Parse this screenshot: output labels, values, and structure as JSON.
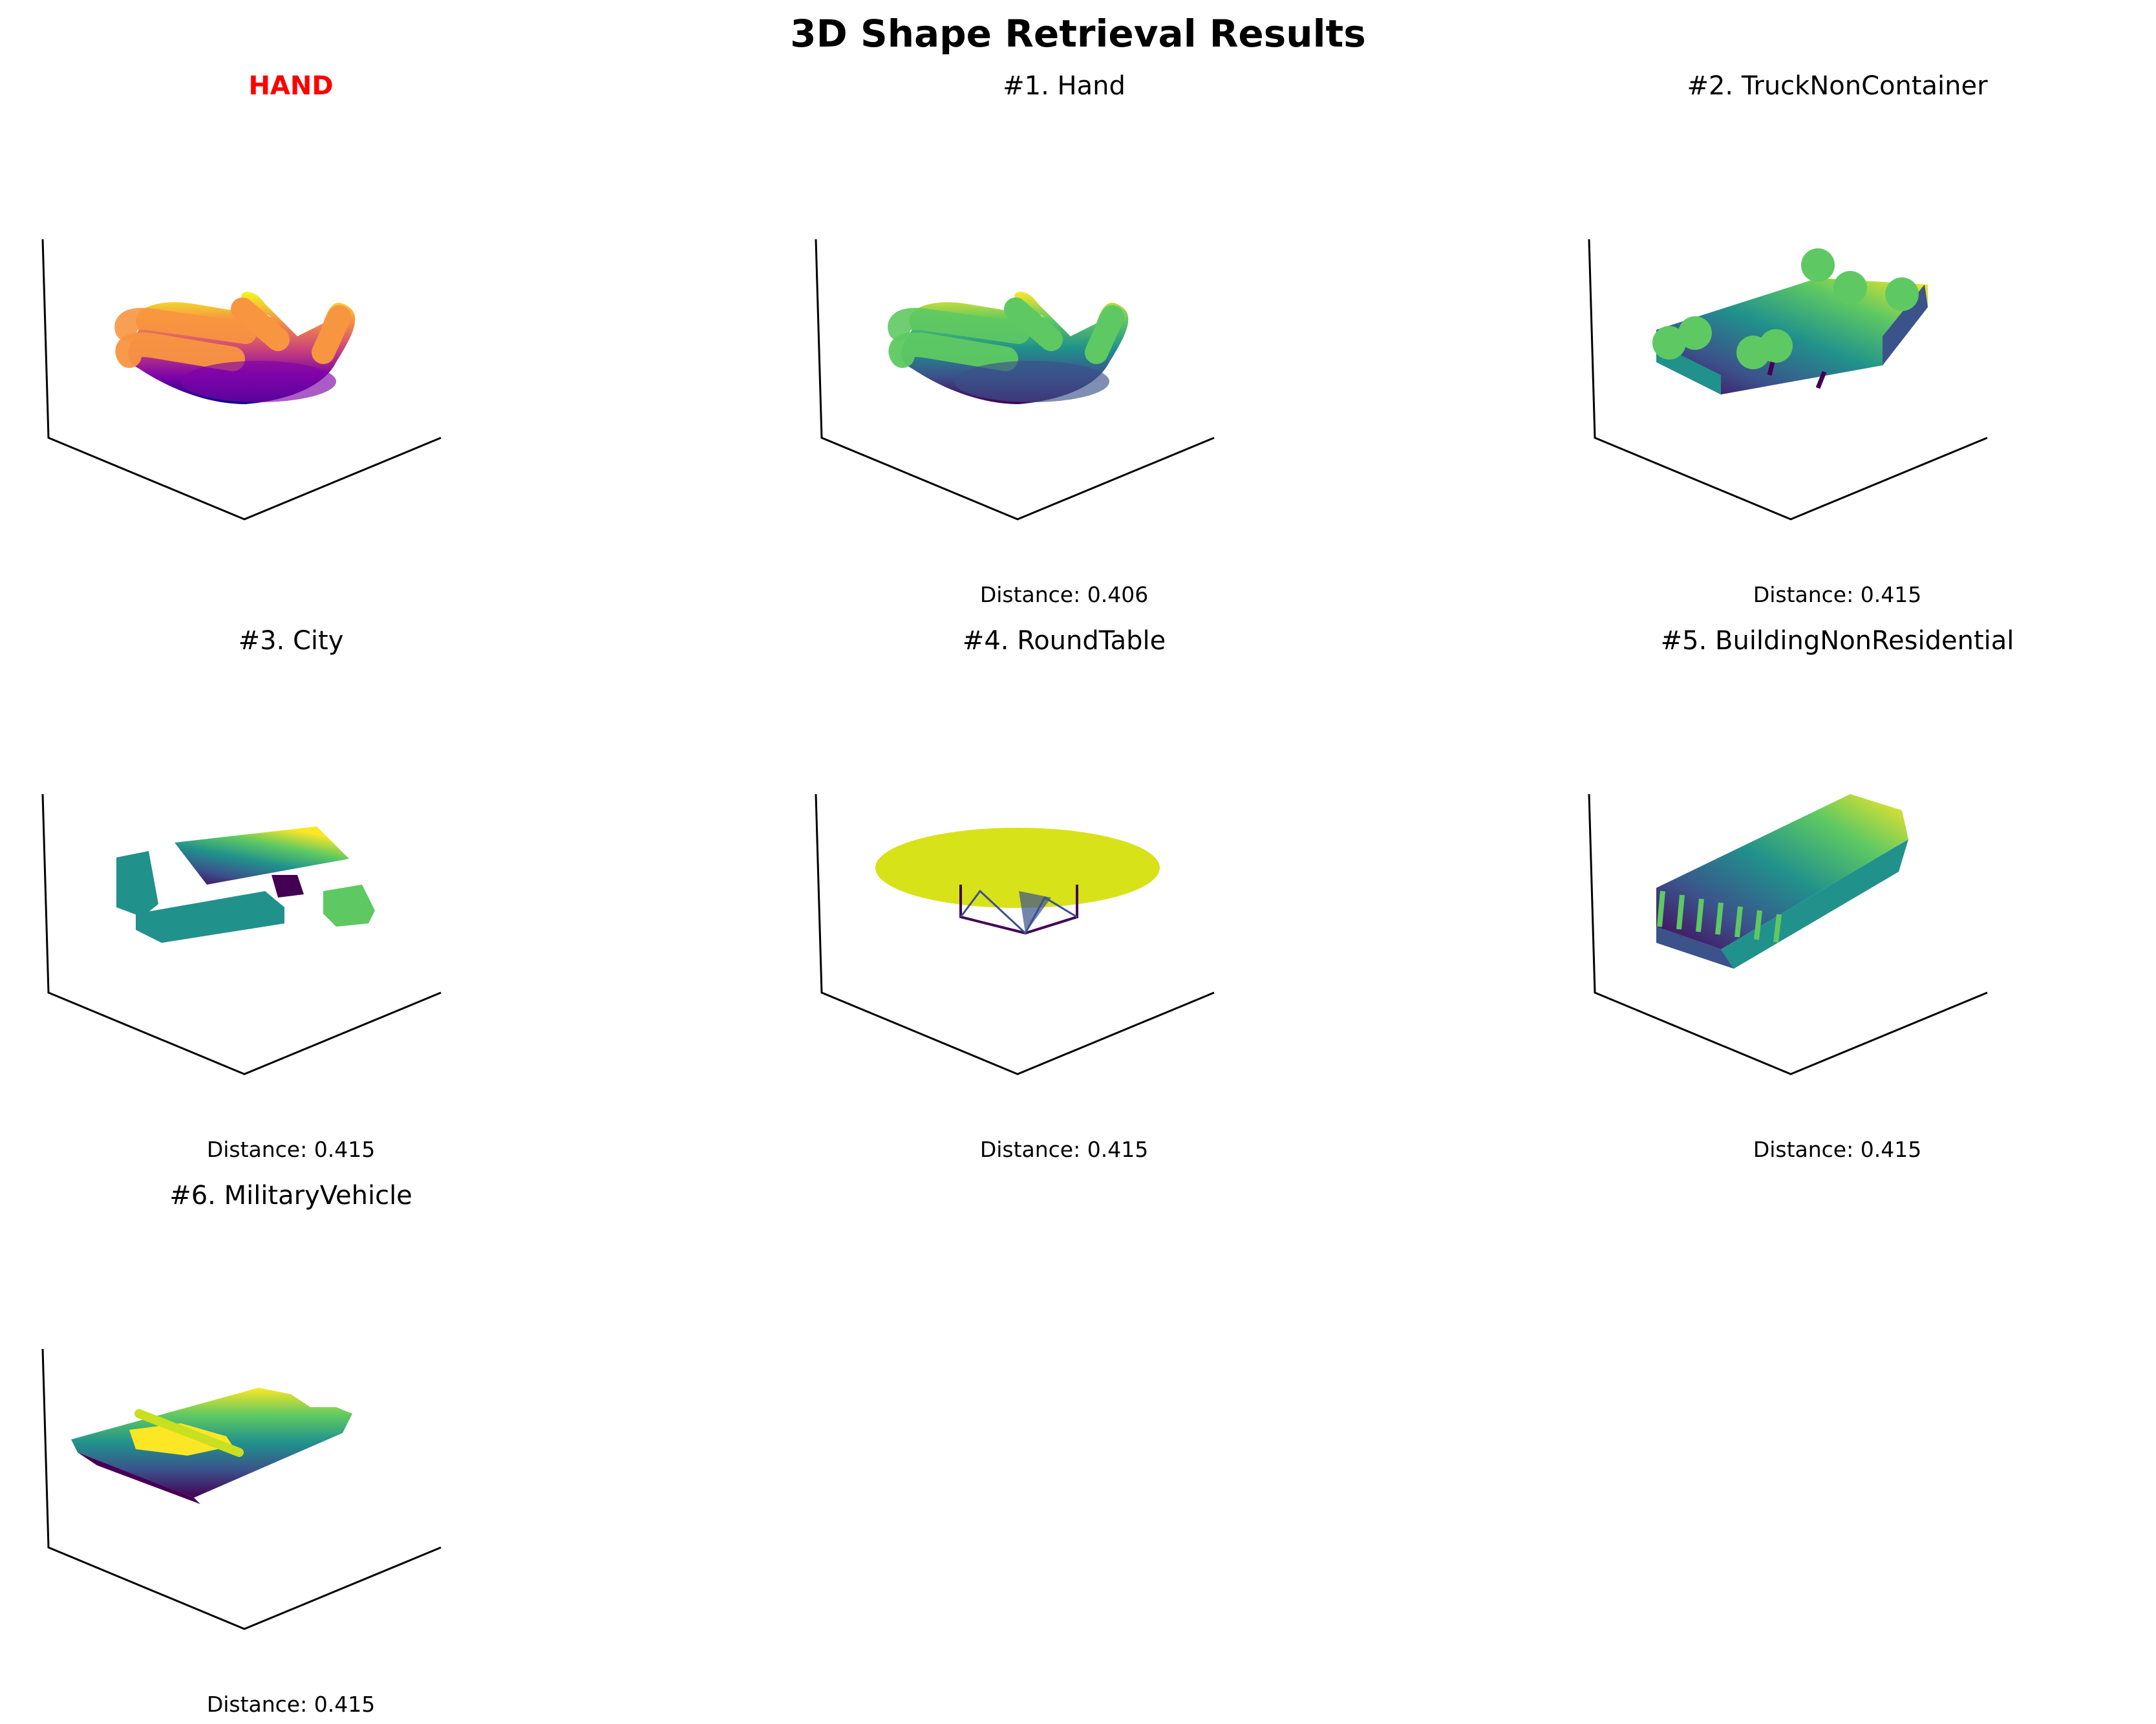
{
  "chart_data": {
    "type": "3d-shape-grid",
    "title": "3D Shape Retrieval Results",
    "query": {
      "label": "HAND",
      "shape": "hand",
      "colormap": "plasma",
      "title_color": "#ff0000"
    },
    "results": [
      {
        "rank_label": "#1. Hand",
        "shape": "hand",
        "colormap": "viridis",
        "distance_label": "Distance: 0.406",
        "distance": 0.406
      },
      {
        "rank_label": "#2. TruckNonContainer",
        "shape": "truck",
        "colormap": "viridis",
        "distance_label": "Distance: 0.415",
        "distance": 0.415
      },
      {
        "rank_label": "#3. City",
        "shape": "city",
        "colormap": "viridis",
        "distance_label": "Distance: 0.415",
        "distance": 0.415
      },
      {
        "rank_label": "#4. RoundTable",
        "shape": "roundtable",
        "colormap": "viridis",
        "distance_label": "Distance: 0.415",
        "distance": 0.415
      },
      {
        "rank_label": "#5. BuildingNonResidential",
        "shape": "building",
        "colormap": "viridis",
        "distance_label": "Distance: 0.415",
        "distance": 0.415
      },
      {
        "rank_label": "#6. MilitaryVehicle",
        "shape": "military",
        "colormap": "viridis",
        "distance_label": "Distance: 0.415",
        "distance": 0.415
      }
    ],
    "layout": "3x3 grid, row-major, query first",
    "axes": "3D box corner lines only, no ticks"
  }
}
